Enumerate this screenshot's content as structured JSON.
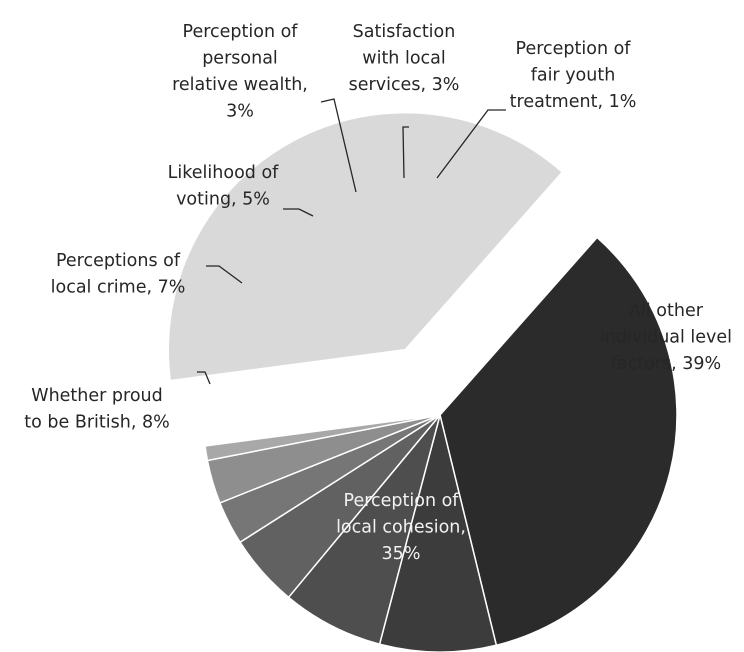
{
  "chart_data": {
    "type": "pie",
    "title": "",
    "slices": [
      {
        "name": "Perception of local cohesion",
        "value": 35,
        "label_lines": [
          "Perception of",
          "local cohesion,",
          "35%"
        ],
        "color": "#2b2b2b",
        "label_style": "inner-light"
      },
      {
        "name": "Whether proud to be British",
        "value": 8,
        "label_lines": [
          "Whether proud",
          "to be British, 8%"
        ],
        "color": "#3c3c3c",
        "label_style": "outside"
      },
      {
        "name": "Perceptions of local crime",
        "value": 7,
        "label_lines": [
          "Perceptions of",
          "local crime, 7%"
        ],
        "color": "#4e4e4e",
        "label_style": "outside"
      },
      {
        "name": "Likelihood of voting",
        "value": 5,
        "label_lines": [
          "Likelihood of",
          "voting, 5%"
        ],
        "color": "#616161",
        "label_style": "outside"
      },
      {
        "name": "Perception of personal relative wealth",
        "value": 3,
        "label_lines": [
          "Perception of",
          "personal",
          "relative wealth,",
          "3%"
        ],
        "color": "#767676",
        "label_style": "outside"
      },
      {
        "name": "Satisfaction with local services",
        "value": 3,
        "label_lines": [
          "Satisfaction",
          "with local",
          "services, 3%"
        ],
        "color": "#8e8e8e",
        "label_style": "outside"
      },
      {
        "name": "Perception of fair youth treatment",
        "value": 1,
        "label_lines": [
          "Perception of",
          "fair youth",
          "treatment, 1%"
        ],
        "color": "#a8a8a8",
        "label_style": "outside"
      },
      {
        "name": "All other individual level factors",
        "value": 39,
        "label_lines": [
          "All other",
          "individual level",
          "factors, 39%"
        ],
        "color": "#d9d9d9",
        "label_style": "inner-dark",
        "exploded": true
      }
    ]
  }
}
